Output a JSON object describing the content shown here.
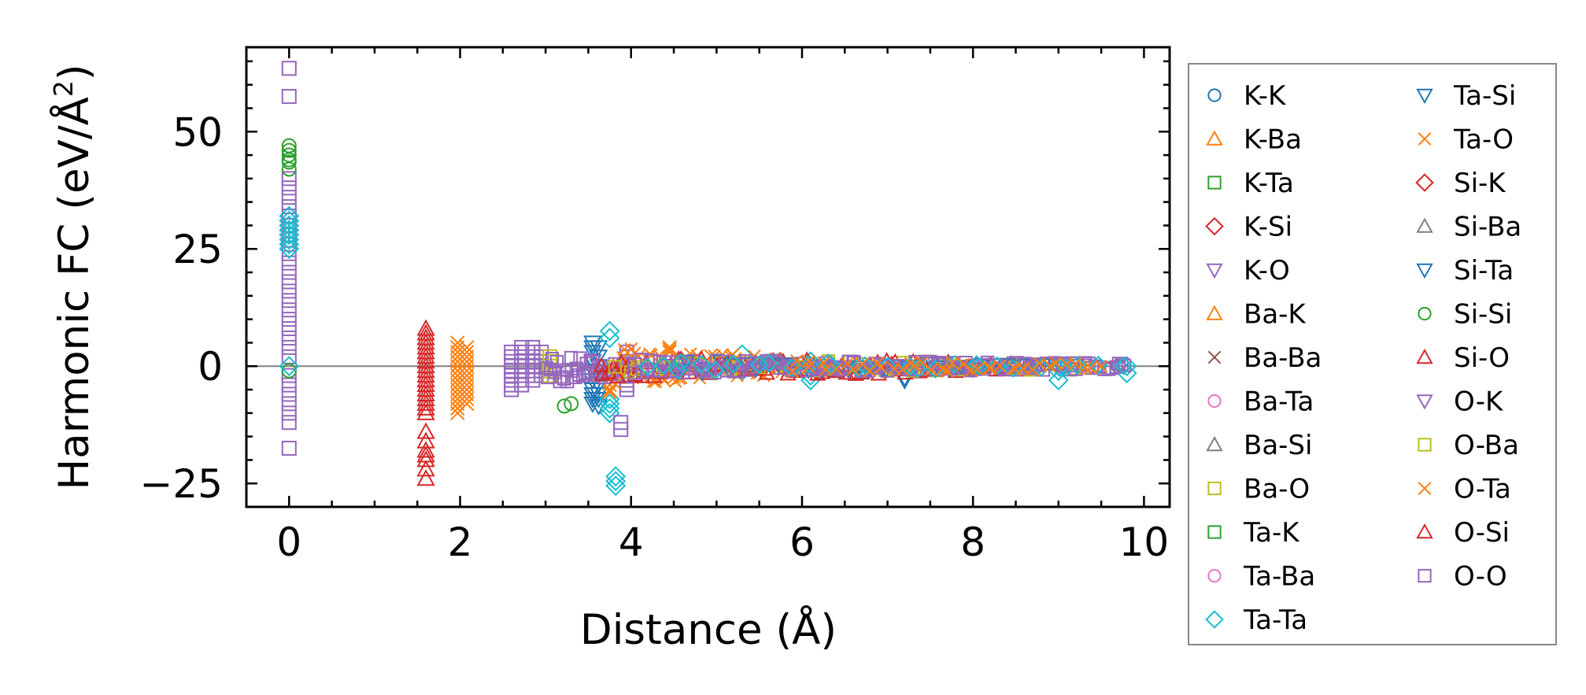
{
  "chart_data": {
    "type": "scatter",
    "title": "",
    "xlabel": "Distance (Å)",
    "ylabel_main": "Harmonic FC (eV/Å",
    "ylabel_sup": "2",
    "ylabel_close": ")",
    "xlim": [
      -0.5,
      10.3
    ],
    "ylim": [
      -30,
      68
    ],
    "xticks": [
      0,
      2,
      4,
      6,
      8,
      10
    ],
    "yticks": [
      -25,
      0,
      25,
      50
    ],
    "xtick_labels": [
      "0",
      "2",
      "4",
      "6",
      "8",
      "10"
    ],
    "ytick_labels": [
      "−25",
      "0",
      "25",
      "50"
    ],
    "zero_line": 0,
    "legend_position": "outside-right",
    "legend": [
      {
        "label": "K-K",
        "marker": "circle",
        "color": "#1f77b4"
      },
      {
        "label": "K-Ba",
        "marker": "triangle-up",
        "color": "#ff7f0e"
      },
      {
        "label": "K-Ta",
        "marker": "square",
        "color": "#2ca02c"
      },
      {
        "label": "K-Si",
        "marker": "diamond",
        "color": "#d62728"
      },
      {
        "label": "K-O",
        "marker": "triangle-down",
        "color": "#9467bd"
      },
      {
        "label": "Ba-K",
        "marker": "triangle-up",
        "color": "#ff7f0e"
      },
      {
        "label": "Ba-Ba",
        "marker": "x",
        "color": "#8c564b"
      },
      {
        "label": "Ba-Ta",
        "marker": "circle",
        "color": "#e377c2"
      },
      {
        "label": "Ba-Si",
        "marker": "triangle-up",
        "color": "#7f7f7f"
      },
      {
        "label": "Ba-O",
        "marker": "square",
        "color": "#bcbd22"
      },
      {
        "label": "Ta-K",
        "marker": "square",
        "color": "#2ca02c"
      },
      {
        "label": "Ta-Ba",
        "marker": "circle",
        "color": "#e377c2"
      },
      {
        "label": "Ta-Ta",
        "marker": "diamond",
        "color": "#17becf"
      },
      {
        "label": "Ta-Si",
        "marker": "triangle-down",
        "color": "#1f77b4"
      },
      {
        "label": "Ta-O",
        "marker": "x",
        "color": "#ff7f0e"
      },
      {
        "label": "Si-K",
        "marker": "diamond",
        "color": "#d62728"
      },
      {
        "label": "Si-Ba",
        "marker": "triangle-up",
        "color": "#7f7f7f"
      },
      {
        "label": "Si-Ta",
        "marker": "triangle-down",
        "color": "#1f77b4"
      },
      {
        "label": "Si-Si",
        "marker": "circle",
        "color": "#2ca02c"
      },
      {
        "label": "Si-O",
        "marker": "triangle-up",
        "color": "#d62728"
      },
      {
        "label": "O-K",
        "marker": "triangle-down",
        "color": "#9467bd"
      },
      {
        "label": "O-Ba",
        "marker": "square",
        "color": "#bcbd22"
      },
      {
        "label": "O-Ta",
        "marker": "x",
        "color": "#ff7f0e"
      },
      {
        "label": "O-Si",
        "marker": "triangle-up",
        "color": "#d62728"
      },
      {
        "label": "O-O",
        "marker": "square",
        "color": "#9467bd"
      }
    ],
    "points": [
      {
        "s": "O-O",
        "m": "square",
        "c": "#9467bd",
        "x": 0,
        "y": [
          63.5,
          57.5,
          40,
          38,
          36,
          34,
          32,
          30,
          28,
          26,
          24,
          22,
          20,
          18,
          16,
          14,
          12,
          10,
          8,
          6,
          4,
          2,
          -2,
          -4,
          -6,
          -8,
          -10,
          -12,
          -17.5
        ]
      },
      {
        "s": "Si-Si",
        "m": "circle",
        "c": "#2ca02c",
        "x": 0,
        "y": [
          47,
          46,
          45,
          44,
          43.5,
          42,
          -1
        ]
      },
      {
        "s": "Ta-Ta",
        "m": "diamond",
        "c": "#17becf",
        "x": 0,
        "y": [
          32,
          31,
          30,
          29,
          28,
          27,
          26,
          25,
          0
        ]
      },
      {
        "s": "Si-O",
        "m": "triangle-up",
        "c": "#d62728",
        "x": 1.6,
        "y": [
          8,
          7,
          6,
          5,
          4,
          3,
          2,
          1,
          0,
          -1,
          -2,
          -3,
          -4,
          -5,
          -6,
          -7,
          -8,
          -9,
          -10,
          -14,
          -16,
          -18,
          -19,
          -20,
          -22,
          -24
        ]
      },
      {
        "s": "O-Ta",
        "m": "x",
        "c": "#ff7f0e",
        "x": 1.97,
        "y": [
          5,
          4,
          3,
          2,
          1,
          0,
          -1,
          -2,
          -3,
          -4,
          -5,
          -6,
          -7,
          -8,
          -9,
          -10
        ]
      },
      {
        "s": "O-Ta",
        "m": "x",
        "c": "#ff7f0e",
        "x": 2.08,
        "y": [
          4,
          3,
          2,
          1,
          0,
          -1,
          -2,
          -3,
          -4,
          -5,
          -6,
          -7,
          -8
        ]
      },
      {
        "s": "O-O",
        "m": "square",
        "c": "#9467bd",
        "x": 2.6,
        "y": [
          3,
          2,
          1,
          0,
          -1,
          -2,
          -3,
          -4,
          -5
        ]
      },
      {
        "s": "O-O",
        "m": "square",
        "c": "#9467bd",
        "x": 2.72,
        "y": [
          4,
          3,
          2,
          1,
          0,
          -1,
          -2,
          -3,
          -4
        ]
      },
      {
        "s": "O-O",
        "m": "square",
        "c": "#9467bd",
        "x": 2.85,
        "y": [
          4,
          3,
          2,
          1,
          0,
          -1,
          -2,
          -3
        ]
      },
      {
        "s": "O-O",
        "m": "square",
        "c": "#9467bd",
        "x": 2.95,
        "y": [
          3,
          2,
          1,
          0,
          -1,
          -2
        ]
      },
      {
        "s": "Ba-O",
        "m": "square",
        "c": "#bcbd22",
        "x": 3.05,
        "y": [
          2,
          1,
          0,
          -1,
          -2
        ]
      },
      {
        "s": "Si-Si",
        "m": "circle",
        "c": "#2ca02c",
        "x": 3.22,
        "y": [
          -8.5
        ]
      },
      {
        "s": "Si-Si",
        "m": "circle",
        "c": "#2ca02c",
        "x": 3.3,
        "y": [
          -8
        ]
      },
      {
        "s": "Ta-Si",
        "m": "triangle-down",
        "c": "#1f77b4",
        "x": 3.55,
        "y": [
          5,
          4,
          3,
          1,
          -1,
          -3,
          -5,
          -6,
          -7,
          -8
        ]
      },
      {
        "s": "Ta-Si",
        "m": "triangle-down",
        "c": "#1f77b4",
        "x": 3.62,
        "y": [
          4,
          2,
          0,
          -2,
          -4,
          -6,
          -7,
          -8.5
        ]
      },
      {
        "s": "Ta-Ta",
        "m": "diamond",
        "c": "#17becf",
        "x": 3.75,
        "y": [
          7.5,
          6,
          -7,
          -8,
          -9,
          -10
        ]
      },
      {
        "s": "Ta-Ta",
        "m": "diamond",
        "c": "#17becf",
        "x": 3.82,
        "y": [
          -23.5,
          -24.5,
          -25.5
        ]
      },
      {
        "s": "O-Ta",
        "m": "x",
        "c": "#ff7f0e",
        "x": 3.75,
        "y": [
          -4,
          -5,
          -5.5
        ]
      },
      {
        "s": "O-O",
        "m": "square",
        "c": "#9467bd",
        "x": 3.88,
        "y": [
          -12,
          -13.5
        ]
      },
      {
        "s": "O-O",
        "m": "square",
        "c": "#9467bd",
        "x": 3.95,
        "y": [
          3,
          2,
          1,
          0,
          -1,
          -2,
          -3,
          -4,
          -5
        ]
      },
      {
        "s": "O-Ta",
        "m": "x",
        "c": "#ff7f0e",
        "x": 4.45,
        "y": [
          4,
          3.5,
          3,
          -2
        ]
      },
      {
        "s": "Ta-Ta",
        "m": "diamond",
        "c": "#17becf",
        "x": 5.3,
        "y": [
          2.5,
          -1
        ]
      },
      {
        "s": "Ta-Ta",
        "m": "diamond",
        "c": "#17becf",
        "x": 6.1,
        "y": [
          1,
          -2,
          -3
        ]
      },
      {
        "s": "Ta-Si",
        "m": "triangle-down",
        "c": "#1f77b4",
        "x": 7.2,
        "y": [
          -2.5,
          -3
        ]
      },
      {
        "s": "Ta-Ta",
        "m": "diamond",
        "c": "#17becf",
        "x": 9.0,
        "y": [
          0,
          -1,
          -3
        ]
      },
      {
        "s": "Ta-Ta",
        "m": "diamond",
        "c": "#17becf",
        "x": 9.8,
        "y": [
          0,
          -1.5
        ]
      },
      {
        "s": "Si-Si",
        "m": "circle",
        "c": "#2ca02c",
        "x": 9.7,
        "y": [
          0
        ]
      }
    ],
    "bands": [
      {
        "s": "O-O",
        "m": "square",
        "c": "#9467bd",
        "x": [
          3.0,
          4.0
        ],
        "y": [
          -4,
          2.5
        ],
        "n": 40
      },
      {
        "s": "O-Ta",
        "m": "x",
        "c": "#ff7f0e",
        "x": [
          3.8,
          5.8
        ],
        "y": [
          -4,
          4
        ],
        "n": 70
      },
      {
        "s": "Si-O",
        "m": "triangle-up",
        "c": "#d62728",
        "x": [
          3.6,
          8.7
        ],
        "y": [
          -2.5,
          2
        ],
        "n": 90
      },
      {
        "s": "Ba-O",
        "m": "square",
        "c": "#bcbd22",
        "x": [
          3.8,
          9.5
        ],
        "y": [
          -1.5,
          1.5
        ],
        "n": 50
      },
      {
        "s": "Ta-Si",
        "m": "triangle-down",
        "c": "#1f77b4",
        "x": [
          4.5,
          9.0
        ],
        "y": [
          -1.5,
          1.2
        ],
        "n": 40
      },
      {
        "s": "O-O",
        "m": "square",
        "c": "#9467bd",
        "x": [
          4.0,
          9.8
        ],
        "y": [
          -1.5,
          1.5
        ],
        "n": 140
      },
      {
        "s": "Ta-Ta",
        "m": "diamond",
        "c": "#17becf",
        "x": [
          4.0,
          9.8
        ],
        "y": [
          -1,
          1
        ],
        "n": 30
      },
      {
        "s": "O-Ta",
        "m": "x",
        "c": "#ff7f0e",
        "x": [
          5.8,
          9.5
        ],
        "y": [
          -1.5,
          1.5
        ],
        "n": 40
      }
    ]
  }
}
